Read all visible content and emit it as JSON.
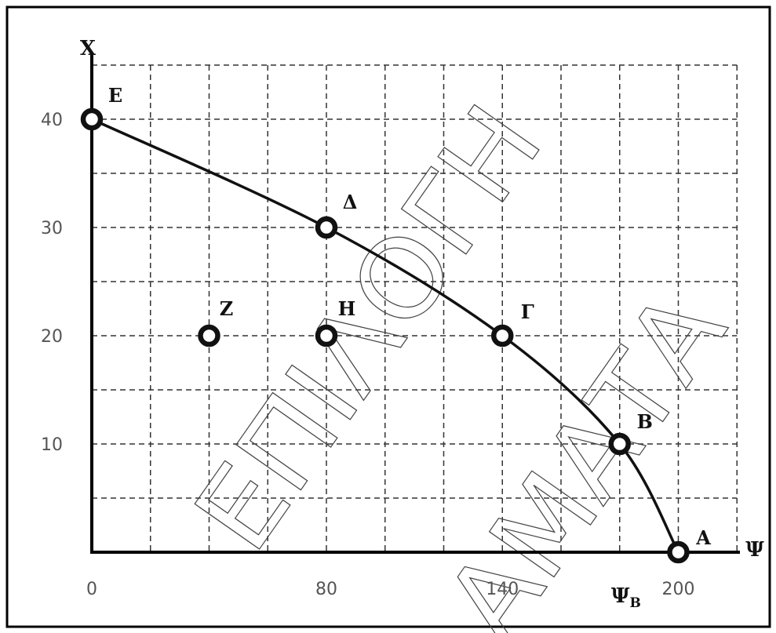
{
  "chart_data": {
    "type": "line",
    "xlabel": "Ψ",
    "ylabel": "X",
    "xlim": [
      0,
      220
    ],
    "ylim": [
      0,
      40
    ],
    "grid": true,
    "x_ticks": [
      {
        "value": 0,
        "label": "0"
      },
      {
        "value": 80,
        "label": "80"
      },
      {
        "value": 140,
        "label": "140"
      },
      {
        "value": 200,
        "label": "200"
      }
    ],
    "x_marker": {
      "value": 180,
      "label": "Ψ",
      "sub": "B"
    },
    "y_ticks": [
      {
        "value": 40,
        "label": "40"
      },
      {
        "value": 30,
        "label": "30"
      },
      {
        "value": 20,
        "label": "20"
      },
      {
        "value": 10,
        "label": "10"
      }
    ],
    "series": [
      {
        "points": [
          {
            "label": "E",
            "x": 0,
            "y": 40
          },
          {
            "label": "Δ",
            "x": 80,
            "y": 30
          },
          {
            "label": "Γ",
            "x": 140,
            "y": 20
          },
          {
            "label": "B",
            "x": 180,
            "y": 10
          },
          {
            "label": "A",
            "x": 200,
            "y": 0
          }
        ]
      }
    ],
    "points_off_curve": [
      {
        "label": "Z",
        "x": 40,
        "y": 20
      },
      {
        "label": "H",
        "x": 80,
        "y": 20
      }
    ]
  },
  "watermark": {
    "line1": "ΕΠΙΛΟΓΗ",
    "line2": "ΑΜΑΤΑ"
  }
}
